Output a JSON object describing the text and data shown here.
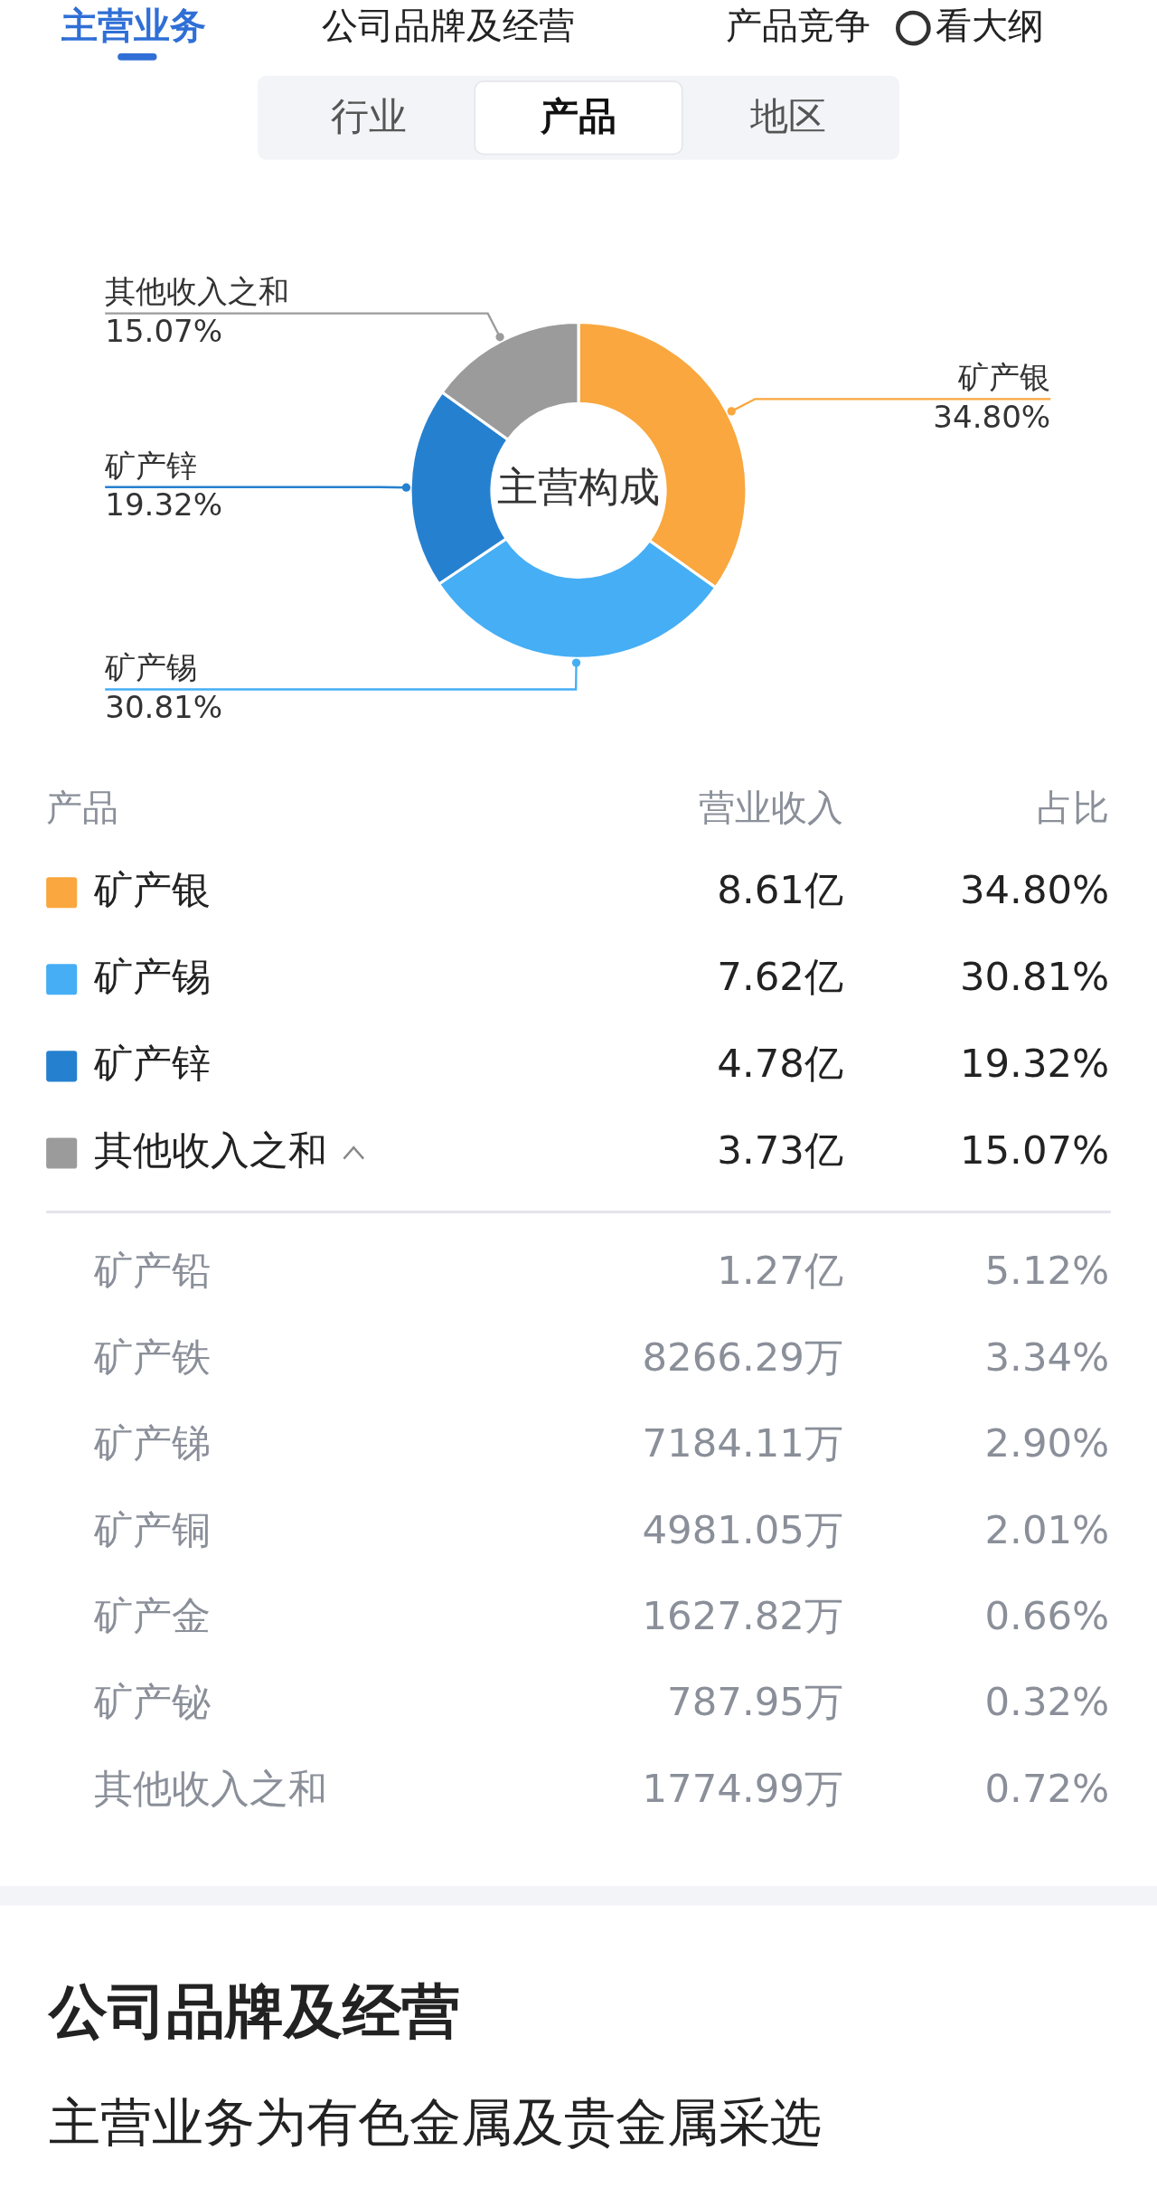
{
  "chart_data": {
    "type": "donut",
    "title": "主营构成",
    "categories": [
      "矿产银",
      "矿产锡",
      "矿产锌",
      "其他收入之和"
    ],
    "values": [
      34.8,
      30.81,
      19.32,
      15.07
    ],
    "value_labels": [
      "34.80%",
      "30.81%",
      "19.32%",
      "15.07%"
    ],
    "colors": [
      "#f9a73e",
      "#45aef5",
      "#2680d0",
      "#9b9b9b"
    ],
    "legend": "bottom",
    "annotations": [
      "主营业务",
      "公司品牌及经营",
      "产品竞争",
      "看大纲",
      "行业",
      "产品",
      "地区",
      "产品",
      "营业收入",
      "占比",
      "8.61亿",
      "7.62亿",
      "4.78亿",
      "3.73亿",
      "矿产铅",
      "1.27亿",
      "5.12%",
      "矿产铁",
      "8266.29万",
      "3.34%",
      "矿产锑",
      "7184.11万",
      "2.90%",
      "矿产铜",
      "4981.05万",
      "2.01%",
      "矿产金",
      "1627.82万",
      "0.66%",
      "矿产铋",
      "787.95万",
      "0.32%",
      "其他收入之和",
      "1774.99万",
      "0.72%",
      "公司品牌及经营",
      "主营业务为有色金属及贵金属采选"
    ]
  }
}
